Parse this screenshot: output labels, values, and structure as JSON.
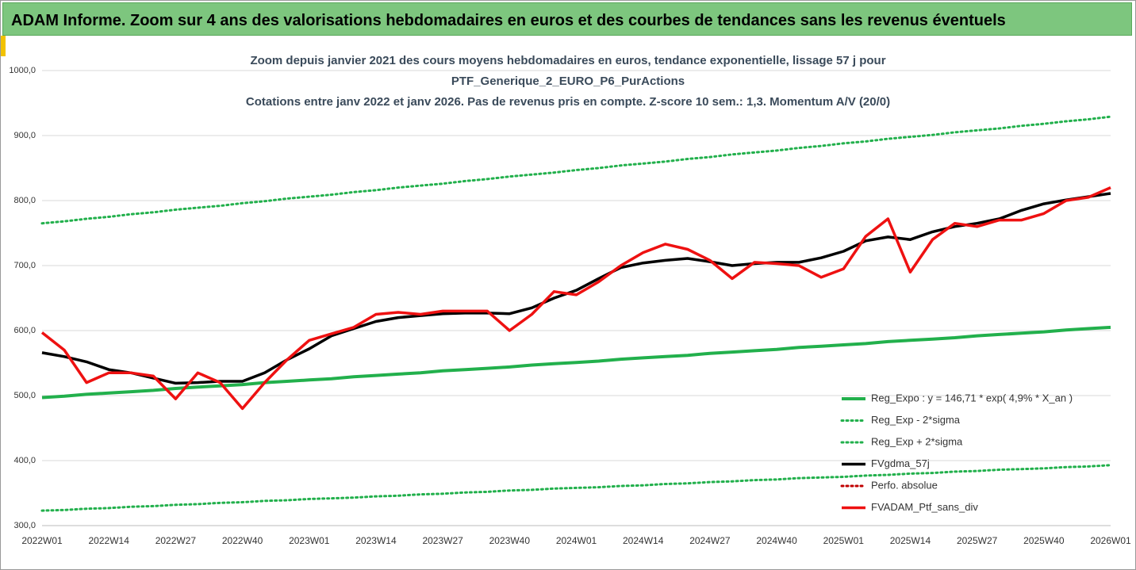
{
  "header": {
    "title": "ADAM Informe. Zoom sur 4 ans des valorisations hebdomadaires en euros et des courbes de tendances sans les revenus éventuels"
  },
  "chart_data": {
    "type": "line",
    "title_lines": [
      "Zoom depuis janvier 2021 des cours moyens hebdomadaires  en euros, tendance exponentielle, lissage 57 j pour",
      "PTF_Generique_2_EURO_P6_PurActions",
      "Cotations entre janv 2022 et janv 2026. Pas de revenus pris en compte. Z-score 10 sem.: 1,3. Momentum  A/V (20/0)"
    ],
    "categories": [
      "2022W01",
      null,
      null,
      "2022W14",
      null,
      null,
      "2022W27",
      null,
      null,
      "2022W40",
      null,
      null,
      "2023W01",
      null,
      null,
      "2023W14",
      null,
      null,
      "2023W27",
      null,
      null,
      "2023W40",
      null,
      null,
      "2024W01",
      null,
      null,
      "2024W14",
      null,
      null,
      "2024W27",
      null,
      null,
      "2024W40",
      null,
      null,
      "2025W01",
      null,
      null,
      "2025W14",
      null,
      null,
      "2025W27",
      null,
      null,
      "2025W40",
      null,
      null,
      "2026W01"
    ],
    "ylim": [
      300,
      1000
    ],
    "yticks": [
      {
        "value": 300,
        "label": "300,0"
      },
      {
        "value": 400,
        "label": "400,0"
      },
      {
        "value": 500,
        "label": "500,0"
      },
      {
        "value": 600,
        "label": "600,0"
      },
      {
        "value": 700,
        "label": "700,0"
      },
      {
        "value": 800,
        "label": "800,0"
      },
      {
        "value": 900,
        "label": "900,0"
      },
      {
        "value": 1000,
        "label": "1000,0"
      }
    ],
    "grid": true,
    "legend": "lower-right",
    "series": [
      {
        "name": "Reg_Expo : y = 146,71 * exp( 4,9% *  X_an )",
        "color": "#22b04c",
        "style": "solid",
        "width": 4,
        "values": [
          497,
          499,
          502,
          504,
          506,
          508,
          511,
          513,
          515,
          517,
          520,
          522,
          524,
          526,
          529,
          531,
          533,
          535,
          538,
          540,
          542,
          544,
          547,
          549,
          551,
          553,
          556,
          558,
          560,
          562,
          565,
          567,
          569,
          571,
          574,
          576,
          578,
          580,
          583,
          585,
          587,
          589,
          592,
          594,
          596,
          598,
          601,
          603,
          605
        ]
      },
      {
        "name": "Reg_Exp - 2*sigma",
        "color": "#22b04c",
        "style": "dotted",
        "width": 3,
        "values": [
          323,
          324,
          326,
          327,
          329,
          330,
          332,
          333,
          335,
          336,
          338,
          339,
          341,
          342,
          343,
          345,
          346,
          348,
          349,
          351,
          352,
          354,
          355,
          357,
          358,
          359,
          361,
          362,
          364,
          365,
          367,
          368,
          370,
          371,
          373,
          374,
          375,
          377,
          378,
          380,
          381,
          383,
          384,
          386,
          387,
          388,
          390,
          391,
          393
        ]
      },
      {
        "name": "Reg_Exp + 2*sigma",
        "color": "#22b04c",
        "style": "dotted",
        "width": 3,
        "values": [
          765,
          768,
          772,
          775,
          779,
          782,
          786,
          789,
          792,
          796,
          799,
          803,
          806,
          809,
          813,
          816,
          820,
          823,
          826,
          830,
          833,
          837,
          840,
          843,
          847,
          850,
          854,
          857,
          860,
          864,
          867,
          871,
          874,
          877,
          881,
          884,
          888,
          891,
          895,
          898,
          901,
          905,
          908,
          911,
          915,
          918,
          922,
          925,
          929
        ]
      },
      {
        "name": "FVgdma_57j",
        "color": "#000000",
        "style": "solid",
        "width": 3.5,
        "values": [
          566,
          560,
          552,
          540,
          535,
          527,
          519,
          520,
          522,
          522,
          535,
          555,
          572,
          592,
          603,
          614,
          620,
          623,
          626,
          627,
          627,
          626,
          635,
          650,
          662,
          680,
          697,
          704,
          708,
          711,
          706,
          700,
          703,
          705,
          705,
          712,
          722,
          738,
          744,
          740,
          752,
          760,
          765,
          772,
          785,
          795,
          801,
          806,
          811
        ]
      },
      {
        "name": "Perfo. absolue",
        "color": "#c00000",
        "style": "dotted",
        "width": 3,
        "values": [
          null,
          null,
          null,
          null,
          null,
          null,
          null,
          null,
          null,
          null,
          null,
          null,
          null,
          null,
          null,
          null,
          null,
          null,
          null,
          null,
          null,
          null,
          null,
          null,
          null,
          null,
          null,
          null,
          null,
          null,
          null,
          null,
          null,
          null,
          null,
          null,
          null,
          null,
          null,
          null,
          null,
          null,
          null,
          null,
          null,
          null,
          null,
          null,
          null
        ]
      },
      {
        "name": "FVADAM_Ptf_sans_div",
        "color": "#ee1111",
        "style": "solid",
        "width": 3.5,
        "values": [
          597,
          570,
          520,
          535,
          535,
          530,
          495,
          535,
          520,
          480,
          520,
          555,
          585,
          595,
          605,
          625,
          628,
          625,
          630,
          630,
          630,
          600,
          625,
          660,
          655,
          675,
          700,
          720,
          733,
          725,
          708,
          680,
          705,
          703,
          700,
          682,
          695,
          745,
          772,
          690,
          740,
          765,
          760,
          770,
          770,
          780,
          800,
          805,
          820
        ]
      }
    ]
  }
}
